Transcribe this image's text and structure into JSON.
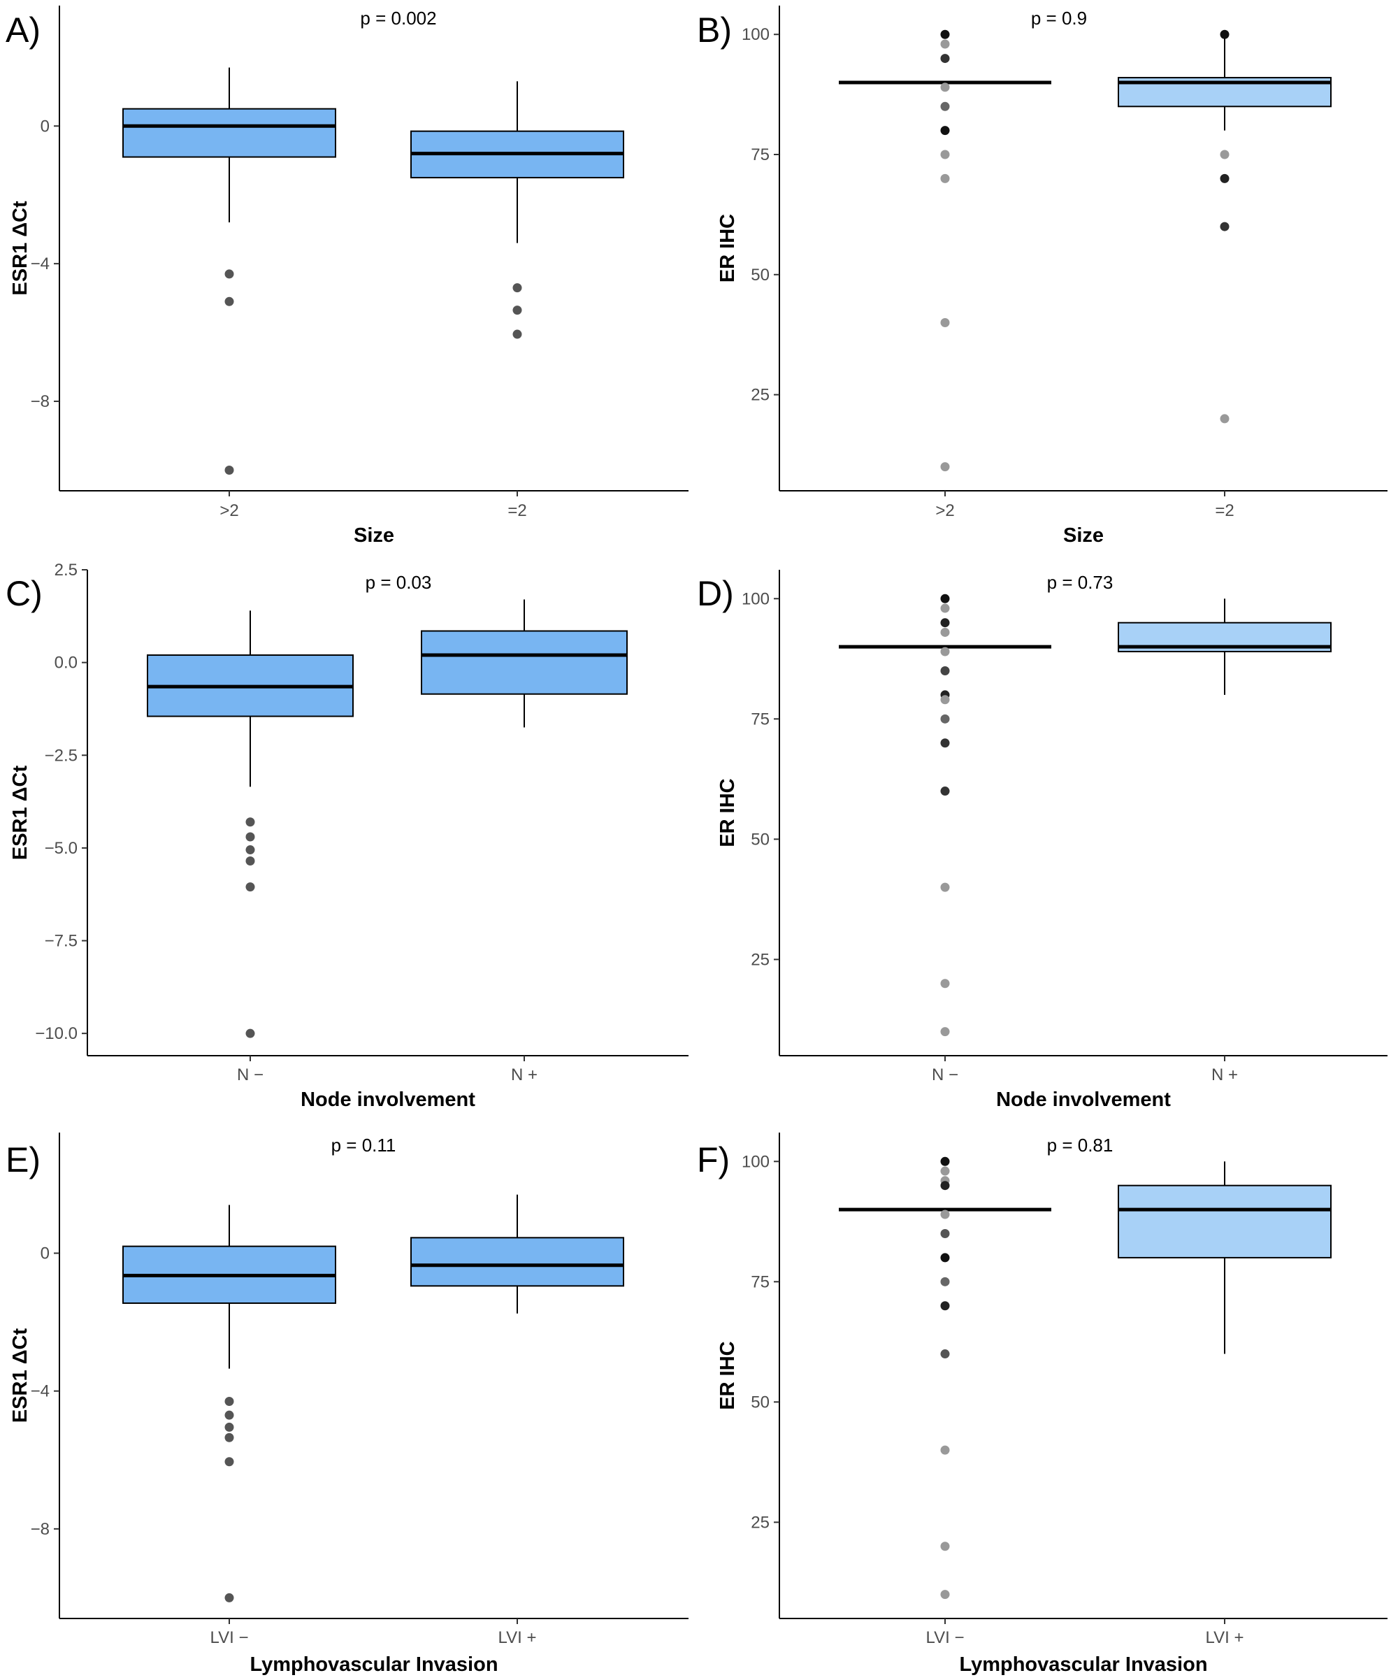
{
  "chart_data": [
    {
      "panel": "A)",
      "type": "box",
      "p_label": "p = 0.002",
      "xlabel": "Size",
      "ylabel": "ESR1 ΔCt",
      "categories": [
        ">2",
        "=2"
      ],
      "y_ticks": [
        0,
        -4,
        -8
      ],
      "y_tick_labels": [
        "0",
        "−4",
        "−8"
      ],
      "ylim": [
        -10.6,
        3.5
      ],
      "fill_color": "#78b5f2",
      "boxes": [
        {
          "category": ">2",
          "whisker_low": -2.8,
          "q1": -0.9,
          "median": 0.0,
          "q3": 0.5,
          "whisker_high": 1.7,
          "outliers": [
            {
              "y": -4.3,
              "shade": "#555555"
            },
            {
              "y": -5.1,
              "shade": "#555555"
            },
            {
              "y": -10.0,
              "shade": "#555555"
            }
          ]
        },
        {
          "category": "=2",
          "whisker_low": -3.4,
          "q1": -1.5,
          "median": -0.8,
          "q3": -0.15,
          "whisker_high": 1.3,
          "outliers": [
            {
              "y": -4.7,
              "shade": "#555555"
            },
            {
              "y": -5.35,
              "shade": "#555555"
            },
            {
              "y": -6.05,
              "shade": "#555555"
            }
          ]
        }
      ]
    },
    {
      "panel": "B)",
      "type": "box",
      "p_label": "p = 0.9",
      "xlabel": "Size",
      "ylabel": "ER IHC",
      "categories": [
        ">2",
        "=2"
      ],
      "y_ticks": [
        100,
        75,
        50,
        25
      ],
      "y_tick_labels": [
        "100",
        "75",
        "50",
        "25"
      ],
      "ylim": [
        5,
        106
      ],
      "fill_color": "#a8d1f7",
      "boxes": [
        {
          "category": ">2",
          "whisker_low": 90,
          "q1": 90,
          "median": 90,
          "q3": 90,
          "whisker_high": 90,
          "outliers": [
            {
              "y": 100,
              "shade": "#111111"
            },
            {
              "y": 98,
              "shade": "#999999"
            },
            {
              "y": 95,
              "shade": "#333333"
            },
            {
              "y": 89,
              "shade": "#999999"
            },
            {
              "y": 85,
              "shade": "#666666"
            },
            {
              "y": 80,
              "shade": "#111111"
            },
            {
              "y": 75,
              "shade": "#999999"
            },
            {
              "y": 70,
              "shade": "#999999"
            },
            {
              "y": 40,
              "shade": "#999999"
            },
            {
              "y": 10,
              "shade": "#999999"
            }
          ]
        },
        {
          "category": "=2",
          "whisker_low": 80,
          "q1": 85,
          "median": 90,
          "q3": 91,
          "whisker_high": 100,
          "outliers": [
            {
              "y": 100,
              "shade": "#111111"
            },
            {
              "y": 75,
              "shade": "#999999"
            },
            {
              "y": 70,
              "shade": "#222222"
            },
            {
              "y": 60,
              "shade": "#333333"
            },
            {
              "y": 20,
              "shade": "#999999"
            }
          ]
        }
      ]
    },
    {
      "panel": "C)",
      "type": "box",
      "p_label": "p = 0.03",
      "xlabel": "Node involvement",
      "ylabel": "ESR1 ΔCt",
      "categories": [
        "N −",
        "N +"
      ],
      "y_ticks": [
        2.5,
        0.0,
        -2.5,
        -5.0,
        -7.5,
        -10.0
      ],
      "y_tick_labels": [
        "2.5",
        "0.0",
        "−2.5",
        "−5.0",
        "−7.5",
        "−10.0"
      ],
      "ylim": [
        -10.6,
        2.5
      ],
      "fill_color": "#78b5f2",
      "boxes": [
        {
          "category": "N −",
          "whisker_low": -3.35,
          "q1": -1.45,
          "median": -0.65,
          "q3": 0.2,
          "whisker_high": 1.4,
          "outliers": [
            {
              "y": -4.3,
              "shade": "#555555"
            },
            {
              "y": -4.7,
              "shade": "#555555"
            },
            {
              "y": -5.05,
              "shade": "#555555"
            },
            {
              "y": -5.35,
              "shade": "#555555"
            },
            {
              "y": -6.05,
              "shade": "#555555"
            },
            {
              "y": -10.0,
              "shade": "#555555"
            }
          ]
        },
        {
          "category": "N +",
          "whisker_low": -1.75,
          "q1": -0.85,
          "median": 0.2,
          "q3": 0.85,
          "whisker_high": 1.7,
          "outliers": []
        }
      ]
    },
    {
      "panel": "D)",
      "type": "box",
      "p_label": "p = 0.73",
      "xlabel": "Node involvement",
      "ylabel": "ER IHC",
      "categories": [
        "N −",
        "N +"
      ],
      "y_ticks": [
        100,
        75,
        50,
        25
      ],
      "y_tick_labels": [
        "100",
        "75",
        "50",
        "25"
      ],
      "ylim": [
        5,
        106
      ],
      "fill_color": "#a8d1f7",
      "boxes": [
        {
          "category": "N −",
          "whisker_low": 90,
          "q1": 90,
          "median": 90,
          "q3": 90,
          "whisker_high": 90,
          "outliers": [
            {
              "y": 100,
              "shade": "#111111"
            },
            {
              "y": 98,
              "shade": "#999999"
            },
            {
              "y": 95,
              "shade": "#222222"
            },
            {
              "y": 93,
              "shade": "#999999"
            },
            {
              "y": 89,
              "shade": "#999999"
            },
            {
              "y": 85,
              "shade": "#444444"
            },
            {
              "y": 80,
              "shade": "#222222"
            },
            {
              "y": 79,
              "shade": "#999999"
            },
            {
              "y": 75,
              "shade": "#666666"
            },
            {
              "y": 70,
              "shade": "#333333"
            },
            {
              "y": 60,
              "shade": "#333333"
            },
            {
              "y": 40,
              "shade": "#999999"
            },
            {
              "y": 20,
              "shade": "#999999"
            },
            {
              "y": 10,
              "shade": "#999999"
            }
          ]
        },
        {
          "category": "N +",
          "whisker_low": 80,
          "q1": 89,
          "median": 90,
          "q3": 95,
          "whisker_high": 100,
          "outliers": []
        }
      ]
    },
    {
      "panel": "E)",
      "type": "box",
      "p_label": "p = 0.11",
      "xlabel": "Lymphovascular Invasion",
      "ylabel": "ESR1 ΔCt",
      "categories": [
        "LVI −",
        "LVI +"
      ],
      "y_ticks": [
        0,
        -4,
        -8
      ],
      "y_tick_labels": [
        "0",
        "−4",
        "−8"
      ],
      "ylim": [
        -10.6,
        3.5
      ],
      "fill_color": "#78b5f2",
      "boxes": [
        {
          "category": "LVI −",
          "whisker_low": -3.35,
          "q1": -1.45,
          "median": -0.65,
          "q3": 0.2,
          "whisker_high": 1.4,
          "outliers": [
            {
              "y": -4.3,
              "shade": "#555555"
            },
            {
              "y": -4.7,
              "shade": "#555555"
            },
            {
              "y": -5.05,
              "shade": "#555555"
            },
            {
              "y": -5.35,
              "shade": "#555555"
            },
            {
              "y": -6.05,
              "shade": "#555555"
            },
            {
              "y": -10.0,
              "shade": "#555555"
            }
          ]
        },
        {
          "category": "LVI +",
          "whisker_low": -1.75,
          "q1": -0.95,
          "median": -0.35,
          "q3": 0.45,
          "whisker_high": 1.7,
          "outliers": []
        }
      ]
    },
    {
      "panel": "F)",
      "type": "box",
      "p_label": "p = 0.81",
      "xlabel": "Lymphovascular Invasion",
      "ylabel": "ER IHC",
      "categories": [
        "LVI −",
        "LVI +"
      ],
      "y_ticks": [
        100,
        75,
        50,
        25
      ],
      "y_tick_labels": [
        "100",
        "75",
        "50",
        "25"
      ],
      "ylim": [
        5,
        106
      ],
      "fill_color": "#a8d1f7",
      "boxes": [
        {
          "category": "LVI −",
          "whisker_low": 90,
          "q1": 90,
          "median": 90,
          "q3": 90,
          "whisker_high": 90,
          "outliers": [
            {
              "y": 100,
              "shade": "#111111"
            },
            {
              "y": 98,
              "shade": "#999999"
            },
            {
              "y": 96,
              "shade": "#999999"
            },
            {
              "y": 95,
              "shade": "#222222"
            },
            {
              "y": 89,
              "shade": "#999999"
            },
            {
              "y": 85,
              "shade": "#555555"
            },
            {
              "y": 80,
              "shade": "#111111"
            },
            {
              "y": 75,
              "shade": "#666666"
            },
            {
              "y": 70,
              "shade": "#222222"
            },
            {
              "y": 60,
              "shade": "#555555"
            },
            {
              "y": 40,
              "shade": "#999999"
            },
            {
              "y": 20,
              "shade": "#999999"
            },
            {
              "y": 10,
              "shade": "#999999"
            }
          ]
        },
        {
          "category": "LVI +",
          "whisker_low": 60,
          "q1": 80,
          "median": 90,
          "q3": 95,
          "whisker_high": 100,
          "outliers": []
        }
      ]
    }
  ]
}
